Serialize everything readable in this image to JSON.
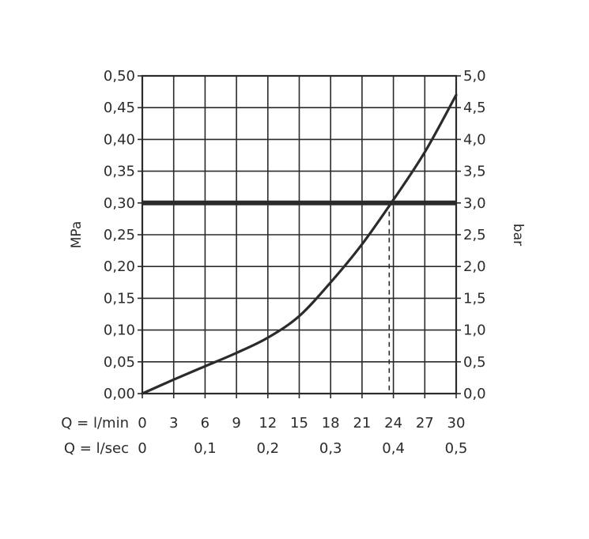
{
  "chart_data": {
    "type": "line",
    "xlabel_primary": "Q = l/min",
    "xlabel_secondary": "Q = l/sec",
    "ylabel_left": "MPa",
    "ylabel_right": "bar",
    "xlim": [
      0,
      30
    ],
    "ylim": [
      0,
      0.5
    ],
    "grid": true,
    "x_ticks_primary": [
      "0",
      "3",
      "6",
      "9",
      "12",
      "15",
      "18",
      "21",
      "24",
      "27",
      "30"
    ],
    "x_ticks_secondary": [
      {
        "value": 0,
        "label": "0"
      },
      {
        "value": 6,
        "label": "0,1"
      },
      {
        "value": 12,
        "label": "0,2"
      },
      {
        "value": 18,
        "label": "0,3"
      },
      {
        "value": 24,
        "label": "0,4"
      },
      {
        "value": 30,
        "label": "0,5"
      }
    ],
    "y_ticks_left": [
      "0,00",
      "0,05",
      "0,10",
      "0,15",
      "0,20",
      "0,25",
      "0,30",
      "0,35",
      "0,40",
      "0,45",
      "0,50"
    ],
    "y_ticks_right": [
      "0,0",
      "0,5",
      "1,0",
      "1,5",
      "2,0",
      "2,5",
      "3,0",
      "3,5",
      "4,0",
      "4,5",
      "5,0"
    ],
    "series": [
      {
        "x": [
          0,
          3,
          6,
          9,
          12,
          15,
          18,
          21,
          24,
          27,
          30
        ],
        "y": [
          0,
          0.022,
          0.043,
          0.064,
          0.088,
          0.122,
          0.175,
          0.235,
          0.305,
          0.38,
          0.47
        ]
      }
    ],
    "reference_line_y": 0.3,
    "marker_x": 23.6
  },
  "colors": {
    "line": "#2b2b2b",
    "grid": "#2b2b2b",
    "background": "#ffffff"
  }
}
